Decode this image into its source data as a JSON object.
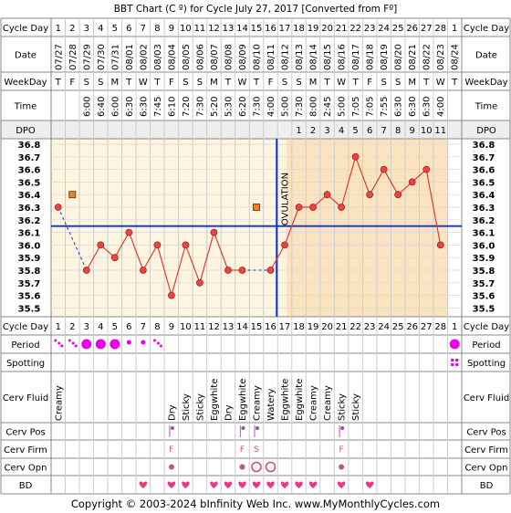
{
  "title": "BBT Chart (C º) for Cycle July 27, 2017  [Converted from Fº]",
  "footer": "Copyright © 2003-2024 bInfinity Web Inc.    www.MyMonthlyCycles.com",
  "colors": {
    "chart_bg": "#fdf5df",
    "luteal_bg": "#fbe3c0",
    "grid": "#cccccc",
    "label_bg": "#eeeeee",
    "point": "#e8463f",
    "line": "#d83f33",
    "coverline": "#0a32d8",
    "ovulation": "#0a32d8",
    "period": "#e800e8",
    "bd": "#e83a84",
    "marker": "#f58220"
  },
  "row_labels": {
    "cycle_day": "Cycle Day",
    "date": "Date",
    "weekday": "WeekDay",
    "time": "Time",
    "dpo": "DPO",
    "period": "Period",
    "spotting": "Spotting",
    "cerv_fluid": "Cerv Fluid",
    "cerv_pos": "Cerv Pos",
    "cerv_firm": "Cerv Firm",
    "cerv_opn": "Cerv Opn",
    "bd": "BD"
  },
  "days": [
    "1",
    "2",
    "3",
    "4",
    "5",
    "6",
    "7",
    "8",
    "9",
    "10",
    "11",
    "12",
    "13",
    "14",
    "15",
    "16",
    "17",
    "18",
    "19",
    "20",
    "21",
    "22",
    "23",
    "24",
    "25",
    "26",
    "27",
    "28",
    "1"
  ],
  "dates": [
    "07/27",
    "07/28",
    "07/29",
    "07/30",
    "07/31",
    "08/01",
    "08/02",
    "08/03",
    "08/04",
    "08/05",
    "08/06",
    "08/07",
    "08/08",
    "08/09",
    "08/10",
    "08/11",
    "08/12",
    "08/13",
    "08/14",
    "08/15",
    "08/16",
    "08/17",
    "08/18",
    "08/19",
    "08/20",
    "08/21",
    "08/22",
    "08/23",
    "08/24"
  ],
  "weekdays": [
    "T",
    "F",
    "S",
    "S",
    "M",
    "T",
    "W",
    "T",
    "F",
    "S",
    "S",
    "M",
    "T",
    "W",
    "T",
    "F",
    "S",
    "S",
    "M",
    "T",
    "W",
    "T",
    "F",
    "S",
    "S",
    "M",
    "T",
    "W",
    "T"
  ],
  "times": [
    "",
    "",
    "6:00",
    "6:40",
    "6:00",
    "6:30",
    "6:30",
    "7:45",
    "6:10",
    "7:20",
    "7:30",
    "5:20",
    "5:30",
    "6:20",
    "7:30",
    "4:00",
    "5:00",
    "7:30",
    "8:00",
    "2:45",
    "5:00",
    "7:05",
    "7:05",
    "7:55",
    "6:30",
    "6:30",
    "6:30",
    "4:00",
    ""
  ],
  "dpo": [
    "",
    "",
    "",
    "",
    "",
    "",
    "",
    "",
    "",
    "",
    "",
    "",
    "",
    "",
    "",
    "",
    "",
    "1",
    "2",
    "3",
    "4",
    "5",
    "6",
    "7",
    "8",
    "9",
    "10",
    "11",
    ""
  ],
  "ovulation_label": "OVULATION",
  "cerv_fluid": [
    "Creamy",
    "",
    "",
    "",
    "",
    "",
    "",
    "",
    "Dry",
    "Sticky",
    "Sticky",
    "Eggwhite",
    "Dry",
    "Eggwhite",
    "Creamy",
    "Watery",
    "Eggwhite",
    "Eggwhite",
    "Creamy",
    "Creamy",
    "Sticky",
    "Sticky",
    "",
    "",
    "",
    "",
    "",
    "",
    ""
  ],
  "period": [
    "dots",
    "dots",
    "big",
    "big",
    "big",
    "small",
    "small",
    "dots",
    "",
    "",
    "",
    "",
    "",
    "",
    "",
    "",
    "",
    "",
    "",
    "",
    "",
    "",
    "",
    "",
    "",
    "",
    "",
    "",
    "big"
  ],
  "spotting": [
    "",
    "",
    "",
    "",
    "",
    "",
    "",
    "",
    "",
    "",
    "",
    "",
    "",
    "",
    "",
    "",
    "",
    "",
    "",
    "",
    "",
    "",
    "",
    "",
    "",
    "",
    "",
    "",
    "dots4"
  ],
  "cerv_pos": [
    "",
    "",
    "",
    "",
    "",
    "",
    "",
    "",
    "mark",
    "",
    "",
    "",
    "",
    "mark",
    "mark",
    "",
    "",
    "",
    "",
    "",
    "mark",
    "",
    "",
    "",
    "",
    "",
    "",
    "",
    ""
  ],
  "cerv_firm": [
    "",
    "",
    "",
    "",
    "",
    "",
    "",
    "",
    "F",
    "",
    "",
    "",
    "",
    "F",
    "S",
    "",
    "",
    "",
    "",
    "",
    "F",
    "",
    "",
    "",
    "",
    "",
    "",
    "",
    ""
  ],
  "cerv_opn": [
    "",
    "",
    "",
    "",
    "",
    "",
    "",
    "",
    "dot",
    "",
    "",
    "",
    "",
    "dot",
    "ring",
    "ring",
    "",
    "",
    "",
    "",
    "dot",
    "",
    "",
    "",
    "",
    "",
    "",
    "",
    ""
  ],
  "bd": [
    "",
    "",
    "",
    "",
    "",
    "",
    "1",
    "",
    "1",
    "1",
    "",
    "1",
    "1",
    "1",
    "1",
    "1",
    "1",
    "1",
    "1",
    "",
    "1",
    "",
    "1",
    "",
    "",
    "",
    "",
    "",
    ""
  ],
  "chart_data": {
    "type": "line",
    "title": "BBT Chart (C º) for Cycle July 27, 2017  [Converted from Fº]",
    "x": [
      1,
      2,
      3,
      4,
      5,
      6,
      7,
      8,
      9,
      10,
      11,
      12,
      13,
      14,
      15,
      16,
      17,
      18,
      19,
      20,
      21,
      22,
      23,
      24,
      25,
      26,
      27,
      28,
      29
    ],
    "y_ticks": [
      "36.8",
      "36.7",
      "36.6",
      "36.5",
      "36.4",
      "36.3",
      "36.2",
      "36.1",
      "36.0",
      "35.9",
      "35.8",
      "35.7",
      "35.6",
      "35.5"
    ],
    "ylim": [
      35.5,
      36.8
    ],
    "temps": [
      36.3,
      null,
      35.8,
      36.0,
      35.9,
      36.1,
      35.8,
      36.0,
      35.6,
      36.0,
      35.7,
      36.1,
      35.8,
      35.8,
      null,
      35.8,
      36.0,
      36.3,
      36.3,
      36.4,
      36.3,
      36.7,
      36.4,
      36.6,
      36.4,
      36.5,
      36.6,
      36.0,
      null
    ],
    "dashed_segments": [
      [
        1,
        3
      ],
      [
        14,
        16
      ]
    ],
    "markers": [
      {
        "day": 2,
        "value": 36.4
      },
      {
        "day": 15,
        "value": 36.3
      }
    ],
    "coverline": 36.15,
    "ovulation_day": 17
  }
}
